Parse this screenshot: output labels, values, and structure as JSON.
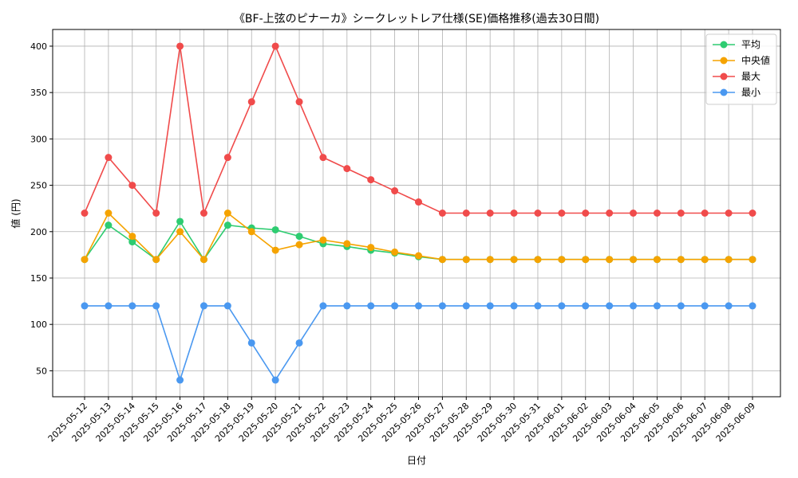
{
  "chart_data": {
    "type": "line",
    "title": "《BF-上弦のピナーカ》シークレットレア仕様(SE)価格推移(過去30日間)",
    "xlabel": "日付",
    "ylabel": "値 (円)",
    "ylim": [
      22,
      418
    ],
    "yticks": [
      50,
      100,
      150,
      200,
      250,
      300,
      350,
      400
    ],
    "grid": true,
    "legend_position": "top-right",
    "categories": [
      "2025-05-12",
      "2025-05-13",
      "2025-05-14",
      "2025-05-15",
      "2025-05-16",
      "2025-05-17",
      "2025-05-18",
      "2025-05-19",
      "2025-05-20",
      "2025-05-21",
      "2025-05-22",
      "2025-05-23",
      "2025-05-24",
      "2025-05-25",
      "2025-05-26",
      "2025-05-27",
      "2025-05-28",
      "2025-05-29",
      "2025-05-30",
      "2025-05-31",
      "2025-06-01",
      "2025-06-02",
      "2025-06-03",
      "2025-06-04",
      "2025-06-05",
      "2025-06-06",
      "2025-06-07",
      "2025-06-08",
      "2025-06-09"
    ],
    "series": [
      {
        "name": "平均",
        "color": "#2ecc71",
        "values": [
          170,
          207,
          189,
          170,
          211,
          170,
          207,
          204,
          202,
          195,
          187,
          184,
          180,
          177,
          173,
          170,
          170,
          170,
          170,
          170,
          170,
          170,
          170,
          170,
          170,
          170,
          170,
          170,
          170
        ]
      },
      {
        "name": "中央値",
        "color": "#f5a300",
        "values": [
          170,
          220,
          195,
          170,
          200,
          170,
          220,
          200,
          180,
          186,
          191,
          187,
          183,
          178,
          174,
          170,
          170,
          170,
          170,
          170,
          170,
          170,
          170,
          170,
          170,
          170,
          170,
          170,
          170
        ]
      },
      {
        "name": "最大",
        "color": "#f04b4b",
        "values": [
          220,
          280,
          250,
          220,
          400,
          220,
          280,
          340,
          400,
          340,
          280,
          268,
          256,
          244,
          232,
          220,
          220,
          220,
          220,
          220,
          220,
          220,
          220,
          220,
          220,
          220,
          220,
          220,
          220
        ]
      },
      {
        "name": "最小",
        "color": "#4a98f0",
        "values": [
          120,
          120,
          120,
          120,
          40,
          120,
          120,
          80,
          40,
          80,
          120,
          120,
          120,
          120,
          120,
          120,
          120,
          120,
          120,
          120,
          120,
          120,
          120,
          120,
          120,
          120,
          120,
          120,
          120
        ]
      }
    ]
  }
}
